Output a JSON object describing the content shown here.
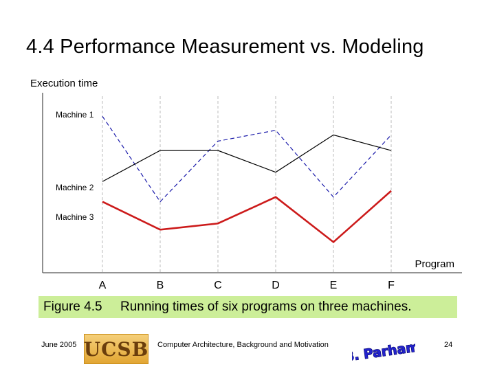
{
  "slide": {
    "title": "4.4 Performance Measurement vs. Modeling",
    "caption_label": "Figure 4.5",
    "caption_text": "Running times of six programs on three machines.",
    "footer_date": "June 2005",
    "footer_course": "Computer Architecture, Background and Motivation",
    "page_number": "24",
    "logo_left_text": "UCSB",
    "logo_right_text": "B. Parhami"
  },
  "chart_data": {
    "type": "line",
    "title": "",
    "xlabel": "Program",
    "ylabel": "Execution time",
    "categories": [
      "A",
      "B",
      "C",
      "D",
      "E",
      "F"
    ],
    "ylim": [
      0,
      100
    ],
    "y_ticks_shown": false,
    "grid": "vertical dashed at each program",
    "series": [
      {
        "name": "Machine 1",
        "values": [
          95,
          40,
          79,
          86,
          43,
          83
        ],
        "color": "#1a1aaa",
        "style": "dashed"
      },
      {
        "name": "Machine 2",
        "values": [
          53,
          73,
          73,
          59,
          83,
          73
        ],
        "color": "#000000",
        "style": "solid"
      },
      {
        "name": "Machine 3",
        "values": [
          40,
          22,
          26,
          43,
          14,
          47
        ],
        "color": "#cc1a1a",
        "style": "solid-thick"
      }
    ]
  }
}
